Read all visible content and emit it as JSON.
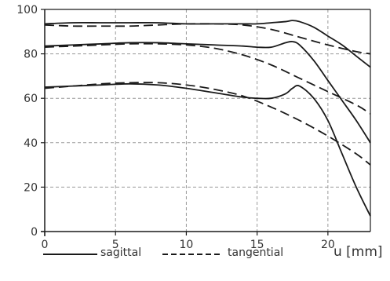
{
  "chart_data": {
    "type": "line",
    "xlabel": "u [mm]",
    "ylabel": "",
    "xlim": [
      0,
      23
    ],
    "ylim": [
      0,
      100
    ],
    "x_ticks": [
      "0",
      "5",
      "10",
      "15",
      "20"
    ],
    "y_ticks": [
      "0",
      "20",
      "40",
      "60",
      "80",
      "100"
    ],
    "grid": true,
    "legend": {
      "placement": "bottom",
      "entries": [
        {
          "label": "sagittal",
          "style": "solid"
        },
        {
          "label": "tangential",
          "style": "dashed"
        }
      ]
    },
    "series": [
      {
        "style": "solid",
        "x": [
          0,
          2,
          4,
          6,
          8,
          10,
          12,
          14,
          15,
          16,
          17,
          17.5,
          18,
          19,
          20,
          21,
          22,
          23
        ],
        "y": [
          93.5,
          94,
          94,
          94,
          94,
          93.5,
          93.5,
          93.5,
          93.5,
          94,
          94.5,
          95,
          94.5,
          92,
          88,
          84,
          79,
          74
        ]
      },
      {
        "style": "dashed",
        "x": [
          0,
          2,
          4,
          6,
          8,
          10,
          12,
          14,
          16,
          18,
          20,
          22,
          23
        ],
        "y": [
          93,
          92.5,
          92.5,
          92.5,
          93,
          93.5,
          93.5,
          93,
          91,
          87.5,
          84,
          81,
          80
        ]
      },
      {
        "style": "solid",
        "x": [
          0,
          2,
          4,
          6,
          8,
          10,
          12,
          14,
          15,
          16,
          17,
          17.5,
          18,
          19,
          20,
          21,
          22,
          23
        ],
        "y": [
          83.5,
          84,
          84.5,
          85,
          85,
          84.5,
          84,
          83.5,
          83,
          83,
          85,
          85.5,
          84,
          77,
          68,
          59,
          50,
          40
        ]
      },
      {
        "style": "dashed",
        "x": [
          0,
          2,
          4,
          6,
          8,
          10,
          12,
          14,
          16,
          18,
          20,
          22,
          23
        ],
        "y": [
          83,
          83.5,
          84,
          84.5,
          84.5,
          84,
          82.5,
          79.5,
          75,
          69,
          63,
          57,
          53
        ]
      },
      {
        "style": "solid",
        "x": [
          0,
          2,
          4,
          6,
          8,
          10,
          12,
          14,
          15,
          16,
          17,
          17.5,
          18,
          19,
          20,
          21,
          22,
          23
        ],
        "y": [
          65,
          65.5,
          66,
          66.5,
          66,
          64.5,
          62.5,
          60.5,
          60,
          60,
          62,
          64.5,
          65.5,
          60,
          50,
          35,
          20,
          7
        ]
      },
      {
        "style": "dashed",
        "x": [
          0,
          2,
          4,
          6,
          8,
          10,
          12,
          14,
          16,
          18,
          20,
          22,
          23
        ],
        "y": [
          64.5,
          65.5,
          66.5,
          67,
          67,
          66,
          64,
          61,
          56,
          50,
          43,
          35,
          30
        ]
      }
    ]
  }
}
